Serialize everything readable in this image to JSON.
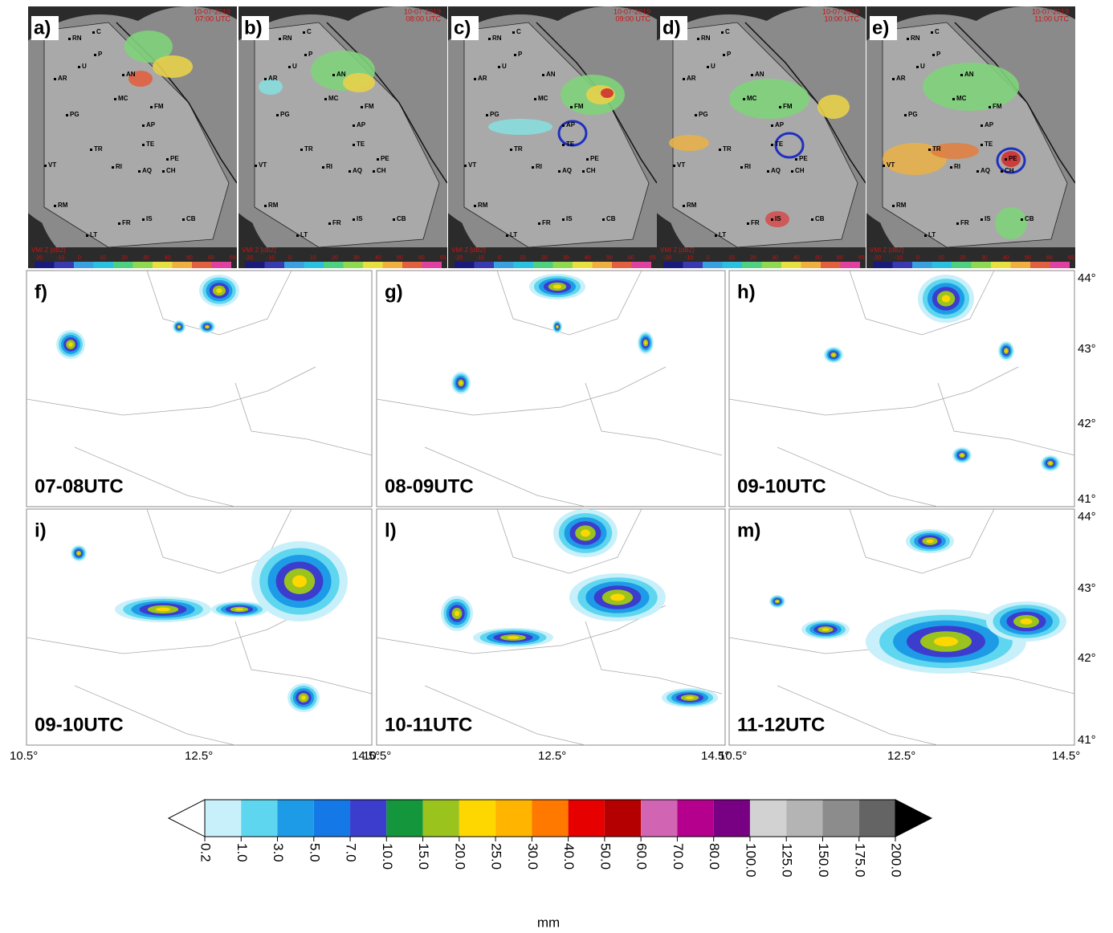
{
  "radar_panels": [
    {
      "label": "a)",
      "date": "10-07-2019",
      "time": "07:00 UTC"
    },
    {
      "label": "b)",
      "date": "10-07-2019",
      "time": "08:00 UTC"
    },
    {
      "label": "c)",
      "date": "10-07-2019",
      "time": "09:00 UTC"
    },
    {
      "label": "d)",
      "date": "10-07-2019",
      "time": "10:00 UTC"
    },
    {
      "label": "e)",
      "date": "10-07-2019",
      "time": "11:00 UTC"
    }
  ],
  "radar_cities": [
    "C",
    "RN",
    "P",
    "U",
    "AR",
    "AN",
    "MC",
    "PG",
    "FM",
    "AP",
    "TE",
    "TR",
    "PE",
    "VT",
    "RI",
    "AQ",
    "CH",
    "RM",
    "FR",
    "IS",
    "CB",
    "LT"
  ],
  "radar_colorbar": {
    "title": "VMI Z [dBZ]",
    "ticks": [
      "-20",
      "-10",
      "0",
      "10",
      "20",
      "30",
      "40",
      "50",
      "60",
      "65"
    ]
  },
  "precip_panels": [
    {
      "label": "f)",
      "period": "07-08UTC"
    },
    {
      "label": "g)",
      "period": "08-09UTC"
    },
    {
      "label": "h)",
      "period": "09-10UTC"
    },
    {
      "label": "i)",
      "period": "09-10UTC"
    },
    {
      "label": "l)",
      "period": "10-11UTC"
    },
    {
      "label": "m)",
      "period": "11-12UTC"
    }
  ],
  "latitude_ticks": [
    "44°",
    "43°",
    "42°",
    "41°"
  ],
  "longitude_ticks": [
    "10.5°",
    "12.5°",
    "14.5°"
  ],
  "colorbar": {
    "ticks": [
      "0.2",
      "1.0",
      "3.0",
      "5.0",
      "7.0",
      "10.0",
      "15.0",
      "20.0",
      "25.0",
      "30.0",
      "40.0",
      "50.0",
      "60.0",
      "70.0",
      "80.0",
      "100.0",
      "125.0",
      "150.0",
      "175.0",
      "200.0"
    ],
    "colors": [
      "#c8f0fa",
      "#5fd6ef",
      "#1e9be6",
      "#1478e6",
      "#3c3ccd",
      "#14963c",
      "#9bc31e",
      "#ffd700",
      "#ffb400",
      "#ff7800",
      "#e60000",
      "#b40000",
      "#d264b4",
      "#b4008c",
      "#780082",
      "#d2d2d2",
      "#b4b4b4",
      "#8c8c8c",
      "#646464"
    ],
    "unit": "mm"
  }
}
